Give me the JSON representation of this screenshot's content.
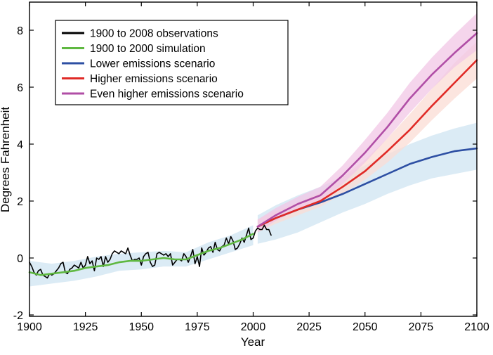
{
  "chart_data": {
    "type": "line",
    "title": "",
    "xlabel": "Year",
    "ylabel": "Degrees Fahrenheit",
    "xlim": [
      1900,
      2100
    ],
    "ylim": [
      -2,
      9
    ],
    "xticks": [
      1900,
      1925,
      1950,
      1975,
      2000,
      2025,
      2050,
      2075,
      2100
    ],
    "yticks": [
      -2,
      0,
      2,
      4,
      6,
      8
    ],
    "grid": false,
    "legend_position": "top-left",
    "series": [
      {
        "name": "1900 to 2008 observations",
        "color": "#000000",
        "x": [
          1900,
          1901,
          1902,
          1903,
          1904,
          1905,
          1906,
          1907,
          1908,
          1909,
          1910,
          1911,
          1912,
          1913,
          1914,
          1915,
          1916,
          1917,
          1918,
          1919,
          1920,
          1921,
          1922,
          1923,
          1924,
          1925,
          1926,
          1927,
          1928,
          1929,
          1930,
          1931,
          1932,
          1933,
          1934,
          1935,
          1936,
          1937,
          1938,
          1939,
          1940,
          1941,
          1942,
          1943,
          1944,
          1945,
          1946,
          1947,
          1948,
          1949,
          1950,
          1951,
          1952,
          1953,
          1954,
          1955,
          1956,
          1957,
          1958,
          1959,
          1960,
          1961,
          1962,
          1963,
          1964,
          1965,
          1966,
          1967,
          1968,
          1969,
          1970,
          1971,
          1972,
          1973,
          1974,
          1975,
          1976,
          1977,
          1978,
          1979,
          1980,
          1981,
          1982,
          1983,
          1984,
          1985,
          1986,
          1987,
          1988,
          1989,
          1990,
          1991,
          1992,
          1993,
          1994,
          1995,
          1996,
          1997,
          1998,
          1999,
          2000,
          2001,
          2002,
          2003,
          2004,
          2005,
          2006,
          2007,
          2008
        ],
        "values": [
          -0.15,
          -0.3,
          -0.5,
          -0.6,
          -0.45,
          -0.4,
          -0.6,
          -0.65,
          -0.7,
          -0.55,
          -0.6,
          -0.55,
          -0.45,
          -0.35,
          -0.2,
          -0.15,
          -0.5,
          -0.55,
          -0.4,
          -0.35,
          -0.25,
          -0.3,
          -0.35,
          -0.15,
          -0.35,
          -0.25,
          0.05,
          -0.2,
          -0.1,
          -0.45,
          0.0,
          -0.05,
          0.05,
          -0.3,
          0.05,
          -0.15,
          -0.05,
          0.15,
          0.25,
          0.2,
          0.15,
          0.25,
          0.2,
          0.15,
          0.35,
          0.1,
          -0.1,
          -0.05,
          -0.05,
          0.0,
          -0.25,
          0.05,
          0.15,
          0.2,
          -0.15,
          -0.3,
          -0.25,
          0.15,
          0.2,
          0.15,
          0.1,
          0.15,
          0.05,
          0.15,
          -0.25,
          -0.15,
          -0.05,
          -0.05,
          -0.1,
          0.15,
          0.05,
          -0.15,
          0.05,
          0.3,
          -0.2,
          0.05,
          -0.3,
          0.35,
          0.1,
          0.2,
          0.35,
          0.4,
          0.2,
          0.55,
          0.3,
          0.25,
          0.4,
          0.45,
          0.7,
          0.5,
          0.75,
          0.6,
          0.3,
          0.35,
          0.5,
          0.7,
          0.55,
          0.8,
          1.05,
          0.65,
          0.7,
          0.95,
          1.05,
          1.0,
          1.0,
          1.15,
          1.0,
          1.0,
          0.8
        ]
      },
      {
        "name": "1900 to 2000 simulation",
        "color": "#5fb841",
        "x": [
          1900,
          1905,
          1910,
          1915,
          1920,
          1925,
          1930,
          1935,
          1940,
          1945,
          1950,
          1955,
          1960,
          1965,
          1970,
          1975,
          1980,
          1985,
          1990,
          1995,
          2000
        ],
        "values": [
          -0.5,
          -0.6,
          -0.55,
          -0.5,
          -0.45,
          -0.35,
          -0.3,
          -0.25,
          -0.15,
          -0.1,
          -0.1,
          -0.05,
          0.0,
          -0.05,
          -0.05,
          0.1,
          0.25,
          0.35,
          0.5,
          0.65,
          0.85
        ]
      },
      {
        "name": "Lower emissions scenario",
        "color": "#2d4fa3",
        "x": [
          2002,
          2010,
          2020,
          2030,
          2040,
          2050,
          2060,
          2070,
          2080,
          2090,
          2100
        ],
        "values": [
          1.1,
          1.4,
          1.7,
          1.95,
          2.25,
          2.6,
          2.95,
          3.3,
          3.55,
          3.75,
          3.85
        ]
      },
      {
        "name": "Higher emissions scenario",
        "color": "#e02a26",
        "x": [
          2002,
          2010,
          2020,
          2030,
          2040,
          2050,
          2060,
          2070,
          2080,
          2090,
          2100
        ],
        "values": [
          1.1,
          1.4,
          1.7,
          2.0,
          2.5,
          3.05,
          3.75,
          4.5,
          5.35,
          6.15,
          6.95
        ]
      },
      {
        "name": "Even higher emissions scenario",
        "color": "#b04ea6",
        "x": [
          2002,
          2010,
          2020,
          2030,
          2040,
          2050,
          2060,
          2070,
          2080,
          2090,
          2100
        ],
        "values": [
          1.1,
          1.5,
          1.9,
          2.2,
          2.9,
          3.7,
          4.6,
          5.6,
          6.45,
          7.2,
          7.9
        ]
      }
    ],
    "bands": [
      {
        "series": "1900 to 2000 simulation",
        "color": "#cfe4f1",
        "x": [
          1900,
          1910,
          1920,
          1930,
          1940,
          1950,
          1960,
          1970,
          1980,
          1990,
          2000
        ],
        "lower": [
          -1.0,
          -0.9,
          -0.8,
          -0.65,
          -0.45,
          -0.4,
          -0.3,
          -0.3,
          -0.05,
          0.2,
          0.45
        ],
        "upper": [
          -0.1,
          -0.2,
          -0.1,
          0.05,
          0.15,
          0.2,
          0.25,
          0.2,
          0.55,
          0.8,
          1.15
        ]
      },
      {
        "series": "Lower emissions scenario",
        "color": "#cfe4f1",
        "x": [
          2002,
          2010,
          2020,
          2030,
          2040,
          2050,
          2060,
          2070,
          2080,
          2090,
          2100
        ],
        "lower": [
          0.5,
          0.65,
          0.9,
          1.25,
          1.6,
          1.9,
          2.25,
          2.55,
          2.8,
          2.95,
          3.1
        ],
        "upper": [
          1.5,
          1.85,
          2.2,
          2.5,
          2.85,
          3.25,
          3.65,
          4.0,
          4.3,
          4.55,
          4.75
        ]
      },
      {
        "series": "Higher emissions scenario",
        "color": "#fbdcd4",
        "x": [
          2002,
          2010,
          2020,
          2030,
          2040,
          2050,
          2060,
          2070,
          2080,
          2090,
          2100
        ],
        "lower": [
          0.9,
          1.2,
          1.5,
          1.8,
          2.25,
          2.75,
          3.35,
          4.05,
          4.85,
          5.6,
          6.3
        ],
        "upper": [
          1.35,
          1.65,
          1.95,
          2.3,
          2.85,
          3.45,
          4.2,
          5.05,
          5.95,
          6.85,
          7.6
        ]
      },
      {
        "series": "Even higher emissions scenario",
        "color": "#f1c7e6",
        "x": [
          2002,
          2010,
          2020,
          2030,
          2040,
          2050,
          2060,
          2070,
          2080,
          2090,
          2100
        ],
        "lower": [
          0.9,
          1.3,
          1.7,
          2.0,
          2.6,
          3.35,
          4.2,
          5.1,
          5.95,
          6.7,
          7.3
        ],
        "upper": [
          1.35,
          1.75,
          2.15,
          2.5,
          3.25,
          4.15,
          5.1,
          6.15,
          7.05,
          7.85,
          8.6
        ]
      }
    ]
  }
}
